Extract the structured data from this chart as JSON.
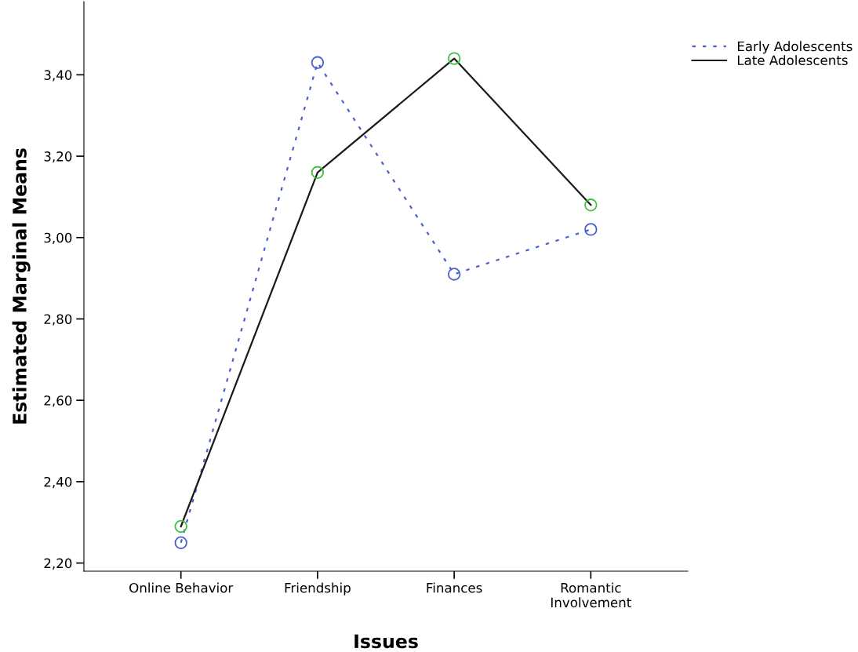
{
  "chart_data": {
    "type": "line",
    "xlabel": "Issues",
    "ylabel": "Estimated Marginal Means",
    "categories": [
      "Online Behavior",
      "Friendship",
      "Finances",
      "Romantic\nInvolvement"
    ],
    "series": [
      {
        "name": "Early Adolescents",
        "color": "#4a62d0",
        "colors": [
          "#4a62d0",
          "#4a62d0",
          "#4a62d0",
          "#4a62d0"
        ],
        "line_style": "dotted",
        "values": [
          2.25,
          3.43,
          2.91,
          3.02
        ]
      },
      {
        "name": "Late Adolescents",
        "color": "#1a1a1a",
        "colors": [
          "#3cc43c",
          "#3cc43c",
          "#3cc43c",
          "#3cc43c"
        ],
        "line_style": "solid",
        "values": [
          2.29,
          3.16,
          3.44,
          3.08
        ]
      }
    ],
    "marker": "circle",
    "ylim": [
      2.18,
      3.58
    ],
    "yticks": [
      {
        "value": 2.2,
        "label": "2,20"
      },
      {
        "value": 2.4,
        "label": "2,40"
      },
      {
        "value": 2.6,
        "label": "2,60"
      },
      {
        "value": 2.8,
        "label": "2,80"
      },
      {
        "value": 3.0,
        "label": "3,00"
      },
      {
        "value": 3.2,
        "label": "3,20"
      },
      {
        "value": 3.4,
        "label": "3,40"
      }
    ],
    "grid": false,
    "legend": "top right"
  }
}
